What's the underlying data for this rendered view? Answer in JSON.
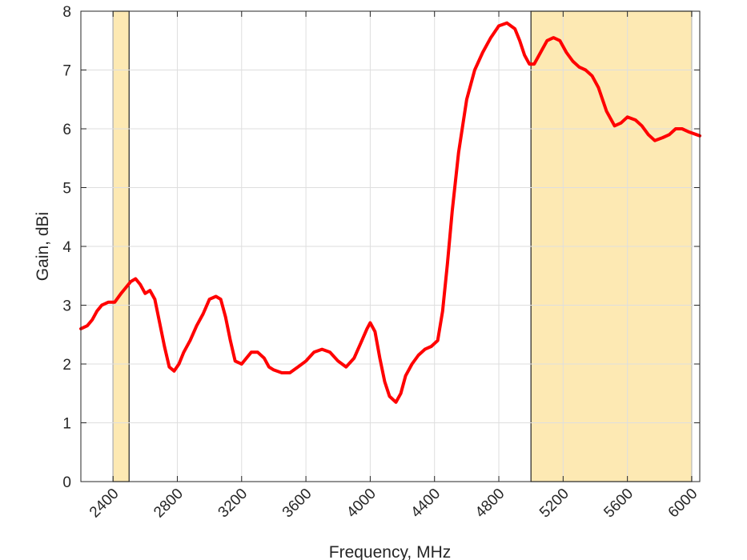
{
  "chart_data": {
    "type": "line",
    "title": "",
    "xlabel": "Frequency, MHz",
    "ylabel": "Gain, dBi",
    "xlim": [
      2200,
      6050
    ],
    "ylim": [
      0,
      8
    ],
    "x_ticks": [
      2400,
      2800,
      3200,
      3600,
      4000,
      4400,
      4800,
      5200,
      5600,
      6000
    ],
    "y_ticks": [
      0,
      1,
      2,
      3,
      4,
      5,
      6,
      7,
      8
    ],
    "grid": true,
    "legend": "none",
    "highlight_bands": [
      {
        "x_start": 2400,
        "x_end": 2500,
        "color": "#fde9b3"
      },
      {
        "x_start": 5000,
        "x_end": 6000,
        "color": "#fde9b3"
      }
    ],
    "series": [
      {
        "color": "#ff0000",
        "x": [
          2200,
          2240,
          2270,
          2300,
          2330,
          2370,
          2410,
          2450,
          2480,
          2510,
          2540,
          2570,
          2600,
          2630,
          2660,
          2690,
          2720,
          2750,
          2780,
          2810,
          2840,
          2880,
          2920,
          2960,
          3000,
          3040,
          3070,
          3100,
          3130,
          3160,
          3200,
          3230,
          3260,
          3300,
          3340,
          3370,
          3400,
          3450,
          3500,
          3550,
          3600,
          3650,
          3700,
          3750,
          3800,
          3850,
          3900,
          3940,
          3980,
          4000,
          4030,
          4060,
          4090,
          4120,
          4160,
          4190,
          4220,
          4260,
          4300,
          4340,
          4380,
          4420,
          4450,
          4480,
          4510,
          4550,
          4600,
          4650,
          4700,
          4750,
          4800,
          4850,
          4900,
          4930,
          4960,
          4990,
          5020,
          5060,
          5100,
          5140,
          5180,
          5220,
          5260,
          5300,
          5340,
          5380,
          5420,
          5470,
          5520,
          5560,
          5600,
          5650,
          5690,
          5730,
          5770,
          5820,
          5860,
          5900,
          5940,
          5980,
          6010,
          6030,
          6050
        ],
        "y": [
          2.6,
          2.65,
          2.75,
          2.9,
          3.0,
          3.05,
          3.05,
          3.2,
          3.3,
          3.4,
          3.45,
          3.35,
          3.2,
          3.25,
          3.1,
          2.7,
          2.3,
          1.95,
          1.88,
          2.0,
          2.2,
          2.4,
          2.65,
          2.85,
          3.1,
          3.15,
          3.1,
          2.8,
          2.4,
          2.05,
          2.0,
          2.1,
          2.2,
          2.2,
          2.1,
          1.95,
          1.9,
          1.85,
          1.85,
          1.95,
          2.05,
          2.2,
          2.25,
          2.2,
          2.05,
          1.95,
          2.1,
          2.35,
          2.6,
          2.7,
          2.55,
          2.1,
          1.7,
          1.45,
          1.35,
          1.5,
          1.8,
          2.0,
          2.15,
          2.25,
          2.3,
          2.4,
          2.9,
          3.7,
          4.6,
          5.6,
          6.5,
          7.0,
          7.3,
          7.55,
          7.75,
          7.8,
          7.7,
          7.5,
          7.25,
          7.1,
          7.1,
          7.3,
          7.5,
          7.55,
          7.5,
          7.3,
          7.15,
          7.05,
          7.0,
          6.9,
          6.7,
          6.3,
          6.05,
          6.1,
          6.2,
          6.15,
          6.05,
          5.9,
          5.8,
          5.85,
          5.9,
          6.0,
          6.0,
          5.95,
          5.92,
          5.9,
          5.88
        ]
      }
    ]
  }
}
